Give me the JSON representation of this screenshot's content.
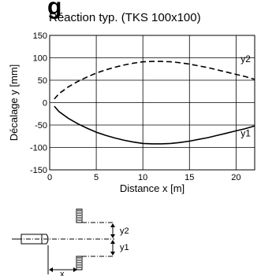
{
  "heading_fragment": "g",
  "chart_data": {
    "type": "line",
    "title": "Réaction typ. (TKS 100x100)",
    "xlabel": "Distance x [m]",
    "ylabel": "Décalage y [mm]",
    "xlim": [
      0,
      22
    ],
    "ylim": [
      -150,
      150
    ],
    "xticks": [
      0,
      5,
      10,
      15,
      20
    ],
    "yticks": [
      -150,
      -100,
      -50,
      0,
      50,
      100,
      150
    ],
    "grid": true,
    "series": [
      {
        "name": "y2",
        "style": "dashed",
        "x": [
          0.5,
          1,
          2,
          3,
          4,
          5,
          6,
          7,
          8,
          9,
          10,
          11,
          12,
          13,
          14,
          15,
          16,
          17,
          18,
          19,
          20,
          21,
          22
        ],
        "values": [
          8,
          20,
          35,
          47,
          57,
          66,
          73,
          79,
          84,
          88,
          91,
          92,
          92,
          91,
          89,
          86,
          82,
          78,
          73,
          68,
          63,
          58,
          52
        ]
      },
      {
        "name": "y1",
        "style": "solid",
        "x": [
          0.5,
          1,
          2,
          3,
          4,
          5,
          6,
          7,
          8,
          9,
          10,
          11,
          12,
          13,
          14,
          15,
          16,
          17,
          18,
          19,
          20,
          21,
          22
        ],
        "values": [
          -8,
          -20,
          -35,
          -47,
          -57,
          -66,
          -73,
          -79,
          -84,
          -88,
          -91,
          -92,
          -92,
          -91,
          -89,
          -86,
          -82,
          -78,
          -73,
          -68,
          -63,
          -58,
          -52
        ]
      }
    ]
  },
  "diagram": {
    "label_y2": "y2",
    "label_y1": "y1",
    "label_x": "x"
  }
}
